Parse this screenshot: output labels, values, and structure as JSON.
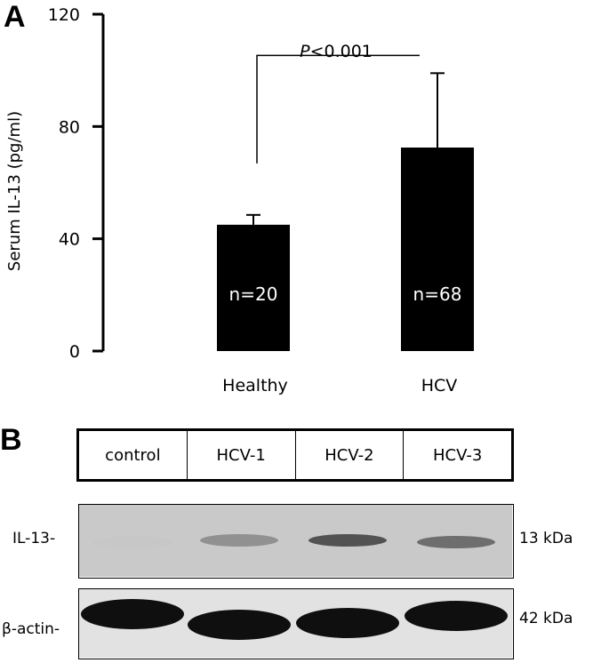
{
  "panel_a_label": "A",
  "panel_b_label": "B",
  "chart_data": {
    "type": "bar",
    "categories": [
      "Healthy",
      "HCV"
    ],
    "values": [
      45,
      72.5
    ],
    "error_upper": [
      48.5,
      99
    ],
    "bar_labels": [
      "n=20",
      "n=68"
    ],
    "ylabel": "Serum IL-13 (pg/ml)",
    "ylim": [
      0,
      120
    ],
    "yticks": [
      "0",
      "40",
      "80",
      "120"
    ],
    "ytick_values": [
      0,
      40,
      80,
      120
    ],
    "significance": {
      "label_italic": "P",
      "label_rest": "<0.001"
    },
    "grid": false,
    "bar_color": "#000000"
  },
  "blot": {
    "lanes": [
      "control",
      "HCV-1",
      "HCV-2",
      "HCV-3"
    ],
    "rows": [
      {
        "label": "IL-13-",
        "size": "13 kDa",
        "band_intensity": [
          0.05,
          0.55,
          0.8,
          0.7
        ]
      },
      {
        "label": "β-actin-",
        "size": "42 kDa",
        "band_intensity": [
          1,
          1,
          1,
          1
        ]
      }
    ]
  }
}
